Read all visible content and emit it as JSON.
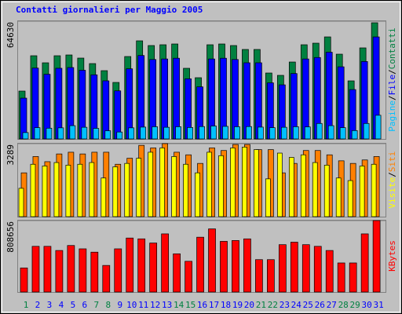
{
  "title": "Contatti giornalieri per Maggio 2005",
  "legend_separator": "/",
  "chart_data": [
    {
      "type": "bar",
      "ylim": [
        0,
        64630
      ],
      "yticks": [
        64630
      ],
      "series": [
        {
          "name": "Contatti",
          "color": "#008040",
          "values": [
            26280,
            45670,
            41790,
            45670,
            46100,
            44380,
            41360,
            37480,
            31020,
            45240,
            53860,
            51270,
            51700,
            52130,
            38780,
            33610,
            51700,
            52130,
            51270,
            49120,
            49120,
            36190,
            34900,
            42220,
            51700,
            52560,
            56010,
            46530,
            31880,
            49980,
            63770
          ]
        },
        {
          "name": "File",
          "color": "#0000ff",
          "values": [
            22400,
            38900,
            35500,
            38800,
            39200,
            37700,
            35200,
            31900,
            26400,
            38500,
            45800,
            43600,
            43900,
            44300,
            33000,
            28600,
            43900,
            44300,
            43600,
            41800,
            41800,
            30800,
            29700,
            35900,
            43900,
            44700,
            47600,
            39600,
            27100,
            42500,
            56000
          ]
        },
        {
          "name": "Pagine",
          "color": "#00c0ff",
          "values": [
            3500,
            6200,
            5900,
            6100,
            7300,
            6400,
            5800,
            4500,
            3800,
            6100,
            6500,
            6700,
            6400,
            6700,
            6300,
            6800,
            7100,
            6900,
            6700,
            6800,
            6500,
            6200,
            6400,
            6700,
            6600,
            8500,
            7300,
            6200,
            4600,
            8500,
            13000
          ]
        }
      ]
    },
    {
      "type": "bar",
      "ylim": [
        0,
        3289
      ],
      "yticks": [
        3289
      ],
      "series": [
        {
          "name": "Siti",
          "color": "#ff8000",
          "values": [
            1974,
            2709,
            2477,
            2825,
            2903,
            2825,
            2903,
            2903,
            2361,
            2632,
            3212,
            3096,
            3289,
            2903,
            2786,
            2399,
            3096,
            2980,
            3251,
            3251,
            3019,
            3019,
            1974,
            2399,
            2980,
            2980,
            2786,
            2516,
            2399,
            2554,
            2709
          ]
        },
        {
          "name": "Visite",
          "color": "#ffff00",
          "values": [
            1277,
            2361,
            2283,
            2438,
            2322,
            2361,
            2438,
            1742,
            2245,
            2399,
            2632,
            2903,
            3096,
            2709,
            2361,
            1974,
            2903,
            2748,
            3096,
            3135,
            3019,
            1703,
            2864,
            2670,
            2786,
            2438,
            2322,
            1742,
            1625,
            2283,
            2361
          ]
        }
      ]
    },
    {
      "type": "bar",
      "ylim": [
        0,
        808656
      ],
      "yticks": [
        808656
      ],
      "categories": [
        "1",
        "2",
        "3",
        "4",
        "5",
        "6",
        "7",
        "8",
        "9",
        "10",
        "11",
        "12",
        "13",
        "14",
        "15",
        "16",
        "17",
        "18",
        "19",
        "20",
        "21",
        "22",
        "23",
        "24",
        "25",
        "26",
        "27",
        "28",
        "29",
        "30",
        "31"
      ],
      "category_colors": [
        "#008040",
        "#0000ff",
        "#0000ff",
        "#0000ff",
        "#0000ff",
        "#0000ff",
        "#008040",
        "#008040",
        "#0000ff",
        "#0000ff",
        "#0000ff",
        "#0000ff",
        "#0000ff",
        "#008040",
        "#008040",
        "#0000ff",
        "#0000ff",
        "#0000ff",
        "#0000ff",
        "#0000ff",
        "#008040",
        "#008040",
        "#0000ff",
        "#0000ff",
        "#0000ff",
        "#0000ff",
        "#0000ff",
        "#008040",
        "#008040",
        "#0000ff",
        "#0000ff"
      ],
      "series": [
        {
          "name": "KBytes",
          "color": "#ff0000",
          "values": [
            272700,
            517200,
            517200,
            470200,
            526600,
            488900,
            451300,
            300900,
            488900,
            611200,
            601800,
            554800,
            658200,
            432500,
            347900,
            620600,
            714600,
            573600,
            583000,
            601800,
            366700,
            366700,
            536000,
            564200,
            536000,
            517200,
            470200,
            329100,
            329100,
            658200,
            808656
          ]
        }
      ]
    }
  ]
}
